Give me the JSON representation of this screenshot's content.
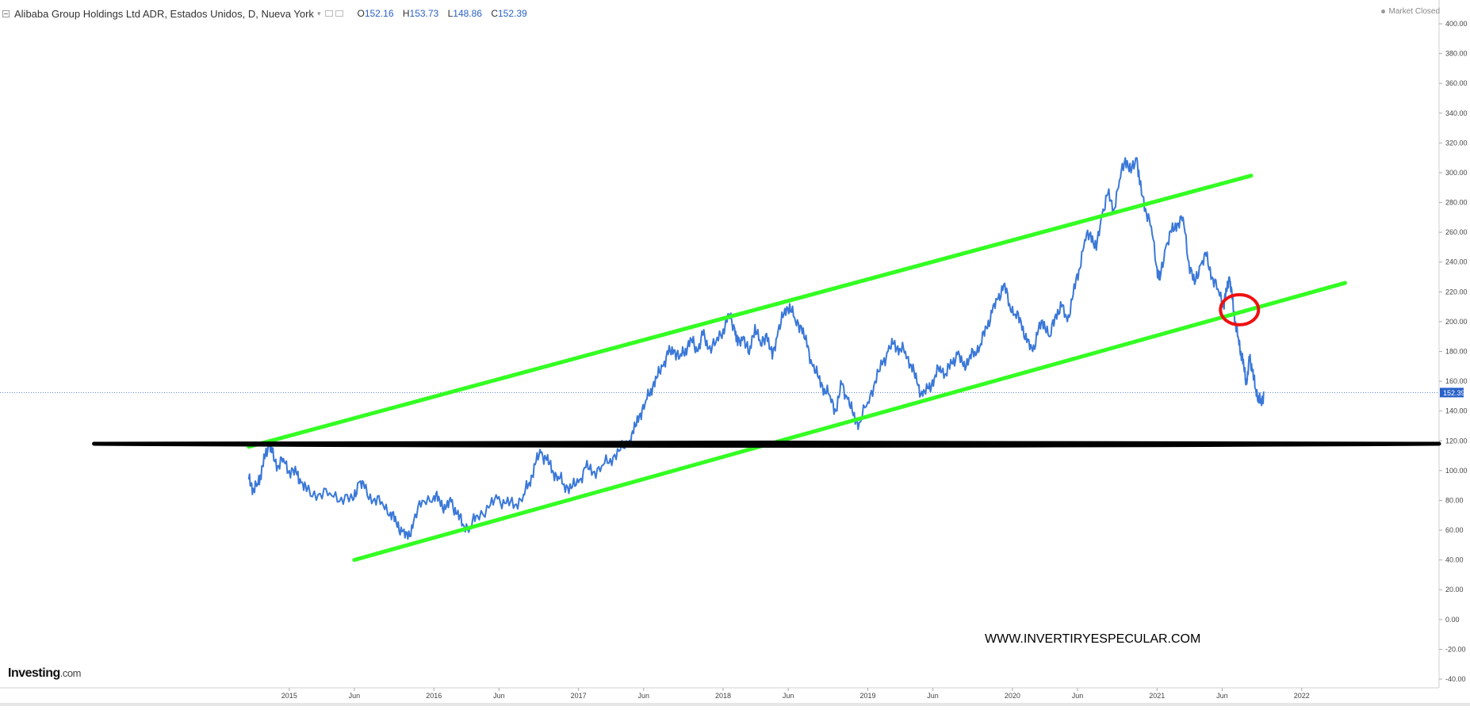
{
  "header": {
    "title": "Alibaba Group Holdings Ltd ADR, Estados Unidos, D, Nueva York",
    "caret": "▾",
    "ohlc": [
      {
        "key": "O",
        "value": "152.16"
      },
      {
        "key": "H",
        "value": "153.73"
      },
      {
        "key": "L",
        "value": "148.86"
      },
      {
        "key": "C",
        "value": "152.39"
      }
    ]
  },
  "market_status": "Market Closed",
  "logo": {
    "main": "Investing",
    "suffix": ".com"
  },
  "watermark": "WWW.INVERTIRYESPECULAR.COM",
  "colors": {
    "price_line": "#3a78d8",
    "channel": "#33ff22",
    "support": "#000000",
    "highlight_circle": "#ee1111",
    "price_tag": "#2962c8"
  },
  "chart_data": {
    "type": "line",
    "ylim": [
      -40,
      400
    ],
    "ytick_step": 20,
    "y_ticks": [
      "400.00",
      "380.00",
      "360.00",
      "340.00",
      "320.00",
      "300.00",
      "280.00",
      "260.00",
      "240.00",
      "220.00",
      "200.00",
      "180.00",
      "160.00",
      "140.00",
      "120.00",
      "100.00",
      "80.00",
      "60.00",
      "40.00",
      "20.00",
      "0.00",
      "-20.00",
      "-40.00"
    ],
    "x_ticks": [
      {
        "label": "2015",
        "date": 2015.0
      },
      {
        "label": "Jun",
        "date": 2015.45
      },
      {
        "label": "2016",
        "date": 2016.0
      },
      {
        "label": "Jun",
        "date": 2016.45
      },
      {
        "label": "2017",
        "date": 2017.0
      },
      {
        "label": "Jun",
        "date": 2017.45
      },
      {
        "label": "2018",
        "date": 2018.0
      },
      {
        "label": "Jun",
        "date": 2018.45
      },
      {
        "label": "2019",
        "date": 2019.0
      },
      {
        "label": "Jun",
        "date": 2019.45
      },
      {
        "label": "2020",
        "date": 2020.0
      },
      {
        "label": "Jun",
        "date": 2020.45
      },
      {
        "label": "2021",
        "date": 2021.0
      },
      {
        "label": "Jun",
        "date": 2021.45
      },
      {
        "label": "2022",
        "date": 2022.0
      }
    ],
    "xlim": [
      2013.0,
      2022.95
    ],
    "last_price": "152.39",
    "series": [
      {
        "points": [
          [
            2014.72,
            94
          ],
          [
            2014.75,
            88
          ],
          [
            2014.78,
            91
          ],
          [
            2014.8,
            97
          ],
          [
            2014.83,
            108
          ],
          [
            2014.86,
            118
          ],
          [
            2014.88,
            112
          ],
          [
            2014.92,
            103
          ],
          [
            2014.96,
            108
          ],
          [
            2015.0,
            100
          ],
          [
            2015.05,
            98
          ],
          [
            2015.08,
            92
          ],
          [
            2015.12,
            86
          ],
          [
            2015.2,
            84
          ],
          [
            2015.28,
            85
          ],
          [
            2015.36,
            82
          ],
          [
            2015.44,
            80
          ],
          [
            2015.48,
            92
          ],
          [
            2015.52,
            88
          ],
          [
            2015.58,
            80
          ],
          [
            2015.64,
            79
          ],
          [
            2015.7,
            72
          ],
          [
            2015.74,
            65
          ],
          [
            2015.78,
            59
          ],
          [
            2015.82,
            54
          ],
          [
            2015.86,
            66
          ],
          [
            2015.92,
            80
          ],
          [
            2016.0,
            83
          ],
          [
            2016.04,
            80
          ],
          [
            2016.08,
            74
          ],
          [
            2016.12,
            79
          ],
          [
            2016.16,
            71
          ],
          [
            2016.2,
            64
          ],
          [
            2016.25,
            62
          ],
          [
            2016.3,
            70
          ],
          [
            2016.38,
            75
          ],
          [
            2016.44,
            81
          ],
          [
            2016.5,
            78
          ],
          [
            2016.56,
            77
          ],
          [
            2016.62,
            84
          ],
          [
            2016.66,
            92
          ],
          [
            2016.7,
            104
          ],
          [
            2016.74,
            112
          ],
          [
            2016.78,
            107
          ],
          [
            2016.82,
            100
          ],
          [
            2016.86,
            96
          ],
          [
            2016.9,
            91
          ],
          [
            2016.95,
            88
          ],
          [
            2017.0,
            92
          ],
          [
            2017.05,
            102
          ],
          [
            2017.1,
            99
          ],
          [
            2017.16,
            103
          ],
          [
            2017.22,
            108
          ],
          [
            2017.28,
            113
          ],
          [
            2017.34,
            118
          ],
          [
            2017.38,
            125
          ],
          [
            2017.42,
            137
          ],
          [
            2017.46,
            145
          ],
          [
            2017.5,
            155
          ],
          [
            2017.54,
            162
          ],
          [
            2017.58,
            170
          ],
          [
            2017.62,
            178
          ],
          [
            2017.66,
            181
          ],
          [
            2017.7,
            176
          ],
          [
            2017.74,
            182
          ],
          [
            2017.78,
            188
          ],
          [
            2017.82,
            180
          ],
          [
            2017.86,
            191
          ],
          [
            2017.9,
            182
          ],
          [
            2017.95,
            186
          ],
          [
            2018.0,
            195
          ],
          [
            2018.04,
            205
          ],
          [
            2018.08,
            195
          ],
          [
            2018.1,
            184
          ],
          [
            2018.14,
            190
          ],
          [
            2018.18,
            178
          ],
          [
            2018.22,
            198
          ],
          [
            2018.26,
            184
          ],
          [
            2018.3,
            192
          ],
          [
            2018.34,
            175
          ],
          [
            2018.38,
            194
          ],
          [
            2018.42,
            205
          ],
          [
            2018.46,
            212
          ],
          [
            2018.5,
            200
          ],
          [
            2018.54,
            197
          ],
          [
            2018.58,
            183
          ],
          [
            2018.62,
            170
          ],
          [
            2018.66,
            162
          ],
          [
            2018.7,
            155
          ],
          [
            2018.74,
            150
          ],
          [
            2018.78,
            140
          ],
          [
            2018.82,
            158
          ],
          [
            2018.86,
            148
          ],
          [
            2018.9,
            137
          ],
          [
            2018.94,
            132
          ],
          [
            2019.0,
            146
          ],
          [
            2019.05,
            160
          ],
          [
            2019.1,
            171
          ],
          [
            2019.14,
            180
          ],
          [
            2019.18,
            185
          ],
          [
            2019.22,
            182
          ],
          [
            2019.26,
            180
          ],
          [
            2019.3,
            171
          ],
          [
            2019.34,
            159
          ],
          [
            2019.38,
            150
          ],
          [
            2019.42,
            155
          ],
          [
            2019.46,
            162
          ],
          [
            2019.5,
            170
          ],
          [
            2019.54,
            165
          ],
          [
            2019.58,
            172
          ],
          [
            2019.62,
            178
          ],
          [
            2019.66,
            170
          ],
          [
            2019.7,
            175
          ],
          [
            2019.74,
            180
          ],
          [
            2019.78,
            185
          ],
          [
            2019.82,
            196
          ],
          [
            2019.86,
            206
          ],
          [
            2019.9,
            215
          ],
          [
            2019.94,
            225
          ],
          [
            2019.98,
            212
          ],
          [
            2020.02,
            205
          ],
          [
            2020.06,
            200
          ],
          [
            2020.1,
            186
          ],
          [
            2020.14,
            180
          ],
          [
            2020.18,
            195
          ],
          [
            2020.22,
            200
          ],
          [
            2020.26,
            190
          ],
          [
            2020.3,
            205
          ],
          [
            2020.34,
            210
          ],
          [
            2020.38,
            200
          ],
          [
            2020.42,
            218
          ],
          [
            2020.46,
            235
          ],
          [
            2020.5,
            255
          ],
          [
            2020.54,
            260
          ],
          [
            2020.58,
            248
          ],
          [
            2020.62,
            272
          ],
          [
            2020.66,
            286
          ],
          [
            2020.7,
            275
          ],
          [
            2020.74,
            295
          ],
          [
            2020.78,
            310
          ],
          [
            2020.82,
            300
          ],
          [
            2020.86,
            310
          ],
          [
            2020.88,
            292
          ],
          [
            2020.92,
            276
          ],
          [
            2020.96,
            264
          ],
          [
            2021.0,
            236
          ],
          [
            2021.02,
            228
          ],
          [
            2021.06,
            250
          ],
          [
            2021.1,
            260
          ],
          [
            2021.14,
            266
          ],
          [
            2021.18,
            270
          ],
          [
            2021.22,
            240
          ],
          [
            2021.26,
            225
          ],
          [
            2021.3,
            238
          ],
          [
            2021.34,
            244
          ],
          [
            2021.38,
            230
          ],
          [
            2021.42,
            222
          ],
          [
            2021.46,
            212
          ],
          [
            2021.48,
            220
          ],
          [
            2021.5,
            230
          ],
          [
            2021.52,
            215
          ],
          [
            2021.54,
            200
          ],
          [
            2021.56,
            190
          ],
          [
            2021.58,
            180
          ],
          [
            2021.6,
            170
          ],
          [
            2021.62,
            158
          ],
          [
            2021.64,
            175
          ],
          [
            2021.66,
            168
          ],
          [
            2021.68,
            155
          ],
          [
            2021.7,
            150
          ],
          [
            2021.72,
            145
          ],
          [
            2021.74,
            152.39
          ]
        ]
      }
    ],
    "drawings": [
      {
        "name": "upper-channel-line",
        "type": "trendline",
        "color": "#33ff22",
        "from": [
          2014.72,
          116
        ],
        "to": [
          2021.65,
          298
        ]
      },
      {
        "name": "lower-channel-line",
        "type": "trendline",
        "color": "#33ff22",
        "from": [
          2015.45,
          40
        ],
        "to": [
          2022.3,
          226
        ]
      },
      {
        "name": "support-line",
        "type": "horizontal",
        "color": "#000000",
        "from": [
          2013.65,
          118
        ],
        "to": [
          2022.95,
          118
        ]
      },
      {
        "name": "breakdown-circle",
        "type": "ellipse",
        "color": "#ee1111",
        "center": [
          2021.57,
          208
        ]
      }
    ]
  }
}
